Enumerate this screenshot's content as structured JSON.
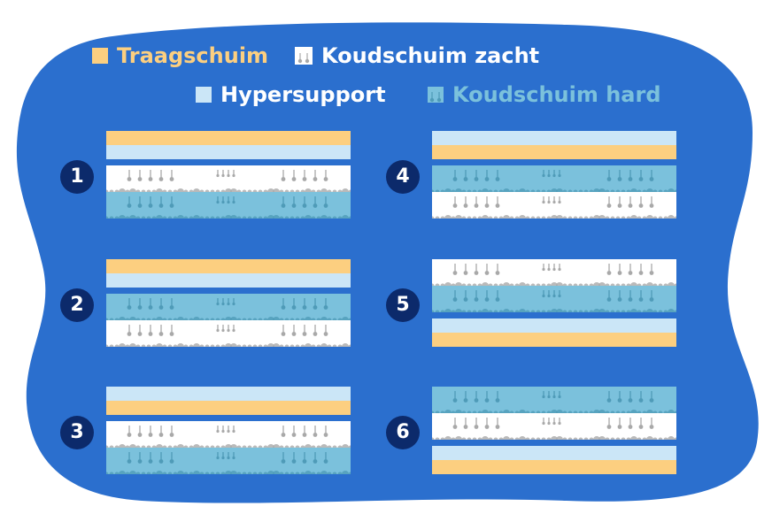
{
  "colors": {
    "background_blob": "#2b6fce",
    "traagschuim": "#fccf80",
    "hypersupport": "#cbe6f7",
    "koudschuim_zacht": "#ffffff",
    "koudschuim_hard": "#7bc1dc",
    "spring_dot": "#a9a9a9",
    "spring_dot_hard": "#4f9bb8",
    "badge": "#0c2a6b",
    "badge_text": "#ffffff"
  },
  "legend": [
    {
      "key": "traagschuim",
      "label": "Traagschuim",
      "color": "#fccf80",
      "icon": "square-swatch"
    },
    {
      "key": "koudschuim_zacht",
      "label": "Koudschuim zacht",
      "color": "#ffffff",
      "icon": "foam-swatch"
    },
    {
      "key": "hypersupport",
      "label": "Hypersupport",
      "color": "#cbe6f7",
      "icon": "square-swatch"
    },
    {
      "key": "koudschuim_hard",
      "label": "Koudschuim hard",
      "color": "#7bc1dc",
      "icon": "foam-swatch"
    }
  ],
  "configurations": [
    {
      "number": "1",
      "layers": [
        "traagschuim",
        "hypersupport",
        "koudschuim_zacht",
        "koudschuim_hard"
      ]
    },
    {
      "number": "2",
      "layers": [
        "traagschuim",
        "hypersupport",
        "koudschuim_hard",
        "koudschuim_zacht"
      ]
    },
    {
      "number": "3",
      "layers": [
        "hypersupport",
        "traagschuim",
        "koudschuim_zacht",
        "koudschuim_hard"
      ]
    },
    {
      "number": "4",
      "layers": [
        "hypersupport",
        "traagschuim",
        "koudschuim_hard",
        "koudschuim_zacht"
      ]
    },
    {
      "number": "5",
      "layers": [
        "koudschuim_zacht",
        "koudschuim_hard",
        "hypersupport",
        "traagschuim"
      ]
    },
    {
      "number": "6",
      "layers": [
        "koudschuim_hard",
        "koudschuim_zacht",
        "hypersupport",
        "traagschuim"
      ]
    }
  ]
}
